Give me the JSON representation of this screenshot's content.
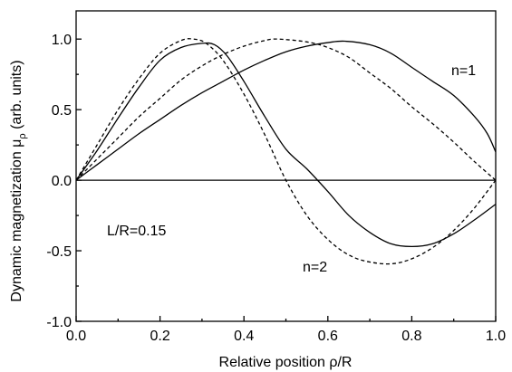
{
  "chart_data": {
    "type": "line",
    "title": "",
    "xlabel": "Relative position  ρ/R",
    "ylabel_main": "Dynamic magnetization  μ",
    "ylabel_sub": "ρ",
    "ylabel_tail": " (arb. units)",
    "xlim": [
      0.0,
      1.0
    ],
    "ylim": [
      -1.0,
      1.2
    ],
    "xticks": [
      "0.0",
      "0.2",
      "0.4",
      "0.6",
      "0.8",
      "1.0"
    ],
    "yticks": [
      "-1.0",
      "-0.5",
      "0.0",
      "0.5",
      "1.0"
    ],
    "zero_line": true,
    "grid": false,
    "annotations": {
      "n1": "n=1",
      "n2": "n=2",
      "lr": "L/R=0.15"
    },
    "series": [
      {
        "style": "solid",
        "x": [
          0,
          0.05,
          0.1,
          0.15,
          0.2,
          0.25,
          0.3,
          0.35,
          0.4,
          0.45,
          0.5,
          0.55,
          0.6,
          0.64,
          0.7,
          0.75,
          0.8,
          0.85,
          0.9,
          0.95,
          0.98,
          1.0
        ],
        "y": [
          0,
          0.11,
          0.22,
          0.33,
          0.43,
          0.53,
          0.62,
          0.7,
          0.78,
          0.85,
          0.91,
          0.95,
          0.975,
          0.985,
          0.96,
          0.9,
          0.8,
          0.7,
          0.6,
          0.45,
          0.33,
          0.2
        ]
      },
      {
        "style": "solid",
        "x": [
          0,
          0.05,
          0.1,
          0.15,
          0.2,
          0.25,
          0.3,
          0.33,
          0.36,
          0.4,
          0.45,
          0.5,
          0.55,
          0.6,
          0.65,
          0.7,
          0.75,
          0.8,
          0.85,
          0.9,
          0.95,
          1.0
        ],
        "y": [
          0,
          0.21,
          0.44,
          0.66,
          0.85,
          0.94,
          0.97,
          0.96,
          0.88,
          0.7,
          0.45,
          0.22,
          0.08,
          -0.08,
          -0.25,
          -0.37,
          -0.45,
          -0.47,
          -0.45,
          -0.38,
          -0.28,
          -0.17
        ]
      },
      {
        "style": "dashed",
        "x": [
          0,
          0.05,
          0.1,
          0.15,
          0.2,
          0.25,
          0.3,
          0.35,
          0.4,
          0.45,
          0.48,
          0.55,
          0.6,
          0.65,
          0.7,
          0.75,
          0.8,
          0.85,
          0.9,
          0.95,
          1.0
        ],
        "y": [
          0,
          0.15,
          0.3,
          0.45,
          0.58,
          0.71,
          0.81,
          0.89,
          0.95,
          0.99,
          1.0,
          0.98,
          0.94,
          0.87,
          0.76,
          0.65,
          0.52,
          0.4,
          0.27,
          0.13,
          0
        ]
      },
      {
        "style": "dashed",
        "x": [
          0,
          0.05,
          0.1,
          0.15,
          0.2,
          0.25,
          0.28,
          0.31,
          0.35,
          0.4,
          0.45,
          0.5,
          0.55,
          0.6,
          0.65,
          0.7,
          0.76,
          0.82,
          0.88,
          0.94,
          1.0
        ],
        "y": [
          0,
          0.25,
          0.5,
          0.72,
          0.9,
          0.99,
          1.0,
          0.97,
          0.85,
          0.61,
          0.32,
          0.0,
          -0.25,
          -0.42,
          -0.53,
          -0.58,
          -0.59,
          -0.53,
          -0.41,
          -0.23,
          0
        ]
      }
    ]
  }
}
